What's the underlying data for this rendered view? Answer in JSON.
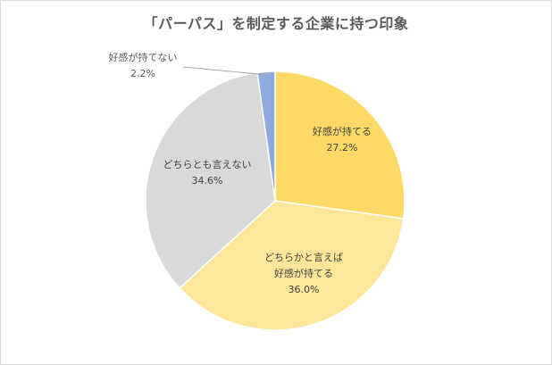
{
  "chart_data": {
    "type": "pie",
    "title": "「パーパス」を制定する企業に持つ印象",
    "slices": [
      {
        "label_lines": [
          "好感が持てる"
        ],
        "value": 27.2,
        "value_text": "27.2%",
        "color": "#ffd966"
      },
      {
        "label_lines": [
          "どちらかと言えば",
          "好感が持てる"
        ],
        "value": 36.0,
        "value_text": "36.0%",
        "color": "#ffe699"
      },
      {
        "label_lines": [
          "どちらとも言えない"
        ],
        "value": 34.6,
        "value_text": "34.6%",
        "color": "#d9d9d9"
      },
      {
        "label_lines": [
          "好感が持てない"
        ],
        "value": 2.2,
        "value_text": "2.2%",
        "color": "#8faadc"
      }
    ],
    "start_angle_deg": 0,
    "direction": "clockwise",
    "legend": "none",
    "slice_border_color": "#ffffff"
  }
}
